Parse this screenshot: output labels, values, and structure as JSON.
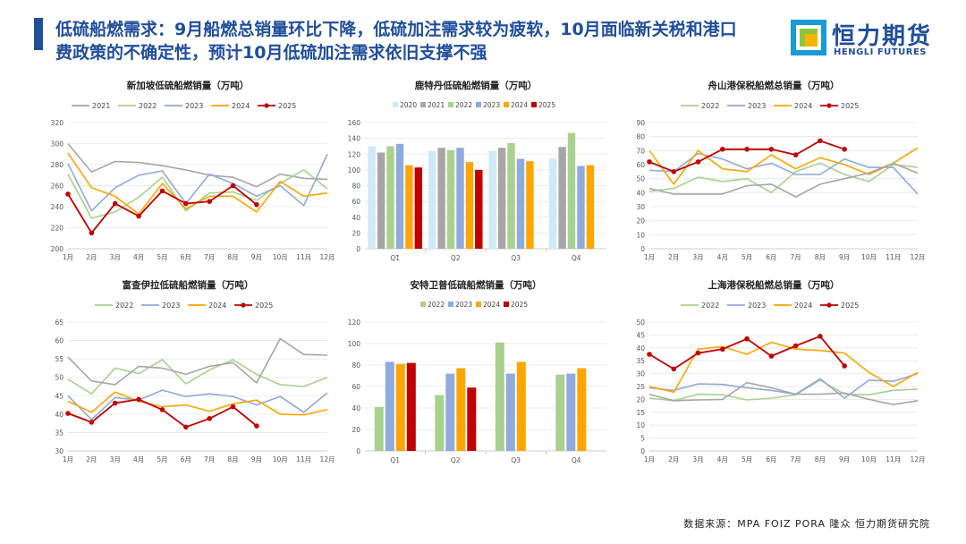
{
  "header": {
    "title_line1": "低硫船燃需求：9月船燃总销量环比下降，低硫加注需求较为疲软，10月面临新关税和港口",
    "title_line2": "费政策的不确定性，预计10月低硫加注需求依旧支撑不强",
    "accent_color": "#1f4e9c"
  },
  "logo": {
    "name": "恒力期货",
    "name_en": "HENGLI FUTURES",
    "icon": "hengli-logo-icon"
  },
  "footer": {
    "source": "数据来源：MPA FOIZ PORA 隆众 恒力期货研究院"
  },
  "chart_data": [
    {
      "type": "line",
      "title": "新加坡低硫船燃销量（万吨）",
      "categories": [
        "1月",
        "2月",
        "3月",
        "4月",
        "5月",
        "6月",
        "7月",
        "8月",
        "9月",
        "10月",
        "11月",
        "12月"
      ],
      "ylim": [
        200,
        320
      ],
      "ystep": 20,
      "series": [
        {
          "name": "2021",
          "color": "#a6a6a6",
          "marker": false,
          "values": [
            300,
            273,
            283,
            282,
            279,
            275,
            270,
            268,
            259,
            271,
            267,
            266
          ]
        },
        {
          "name": "2022",
          "color": "#a9d18e",
          "marker": false,
          "values": [
            271,
            229,
            235,
            249,
            268,
            236,
            253,
            254,
            246,
            262,
            275,
            257
          ]
        },
        {
          "name": "2023",
          "color": "#8faadc",
          "marker": false,
          "values": [
            281,
            236,
            258,
            270,
            274,
            243,
            271,
            262,
            250,
            260,
            241,
            290
          ]
        },
        {
          "name": "2024",
          "color": "#ffa500",
          "marker": false,
          "values": [
            291,
            258,
            250,
            233,
            262,
            238,
            250,
            250,
            235,
            264,
            250,
            253
          ]
        },
        {
          "name": "2025",
          "color": "#c00000",
          "marker": true,
          "values": [
            252,
            215,
            243,
            231,
            255,
            243,
            245,
            260,
            242,
            null,
            null,
            null
          ]
        }
      ]
    },
    {
      "type": "bar",
      "title": "鹿特丹低硫船燃销量（万吨）",
      "categories": [
        "Q1",
        "Q2",
        "Q3",
        "Q4"
      ],
      "ylim": [
        0,
        160
      ],
      "ystep": 20,
      "series": [
        {
          "name": "2020",
          "color": "#cfeaf7",
          "values": [
            130,
            124,
            124,
            115
          ]
        },
        {
          "name": "2021",
          "color": "#a6a6a6",
          "values": [
            122,
            128,
            128,
            129
          ]
        },
        {
          "name": "2022",
          "color": "#a9d18e",
          "values": [
            130,
            125,
            134,
            147
          ]
        },
        {
          "name": "2023",
          "color": "#8faadc",
          "values": [
            133,
            128,
            114,
            105
          ]
        },
        {
          "name": "2024",
          "color": "#ffa500",
          "values": [
            106,
            110,
            111,
            106
          ]
        },
        {
          "name": "2025",
          "color": "#c00000",
          "values": [
            103,
            100,
            null,
            null
          ]
        }
      ]
    },
    {
      "type": "line",
      "title": "舟山港保税船燃总销量（万吨）",
      "categories": [
        "1月",
        "2月",
        "3月",
        "4月",
        "5月",
        "6月",
        "7月",
        "8月",
        "9月",
        "10月",
        "11月",
        "12月"
      ],
      "ylim": [
        0,
        90
      ],
      "ystep": 10,
      "series": [
        {
          "name": "2022",
          "color": "#a9d18e",
          "marker": false,
          "values": [
            41,
            43,
            51,
            48,
            50,
            40,
            55,
            61,
            53,
            48,
            60,
            58
          ]
        },
        {
          "name": "2023",
          "color": "#8faadc",
          "marker": false,
          "values": [
            56,
            55,
            68,
            64,
            57,
            61,
            53,
            53,
            64,
            58,
            58,
            39
          ]
        },
        {
          "name": "2024",
          "color": "#ffa500",
          "marker": false,
          "values": [
            70,
            46,
            70,
            57,
            55,
            67,
            57,
            65,
            60,
            53,
            61,
            72
          ]
        },
        {
          "name": "2025",
          "color": "#c00000",
          "marker": true,
          "values": [
            62,
            55,
            62,
            71,
            71,
            71,
            67,
            77,
            71,
            null,
            null,
            null
          ]
        },
        {
          "name": "2021",
          "color": "#a6a6a6",
          "marker": false,
          "legend": false,
          "values": [
            43,
            39,
            39,
            39,
            45,
            46,
            37,
            46,
            50,
            54,
            61,
            54
          ]
        }
      ]
    },
    {
      "type": "line",
      "title": "富查伊拉低硫船燃销量（万吨）",
      "categories": [
        "1月",
        "2月",
        "3月",
        "4月",
        "5月",
        "6月",
        "7月",
        "8月",
        "9月",
        "10月",
        "11月",
        "12月"
      ],
      "ylim": [
        30,
        65
      ],
      "ystep": 5,
      "series": [
        {
          "name": "2022",
          "color": "#a9d18e",
          "marker": false,
          "values": [
            49.5,
            45.5,
            52.5,
            51.0,
            54.8,
            48.2,
            52.0,
            54.8,
            50.8,
            48.0,
            47.5,
            50.0
          ]
        },
        {
          "name": "2023",
          "color": "#8faadc",
          "marker": false,
          "values": [
            45.0,
            38.5,
            44.5,
            43.8,
            46.5,
            44.8,
            45.5,
            44.8,
            42.5,
            44.8,
            40.5,
            45.8
          ]
        },
        {
          "name": "2024",
          "color": "#ffa500",
          "marker": false,
          "values": [
            43.5,
            40.5,
            46.0,
            43.5,
            42.0,
            42.5,
            40.8,
            42.8,
            43.8,
            40.0,
            39.8,
            41.2
          ]
        },
        {
          "name": "2025",
          "color": "#c00000",
          "marker": true,
          "values": [
            40.2,
            37.8,
            43.0,
            44.0,
            41.2,
            36.5,
            38.8,
            42.0,
            36.8,
            null,
            null,
            null
          ]
        },
        {
          "name": "2021",
          "color": "#a6a6a6",
          "marker": false,
          "legend": false,
          "values": [
            55.5,
            49.0,
            48.0,
            53.0,
            52.5,
            50.8,
            53.0,
            54.0,
            48.5,
            60.5,
            56.2,
            56.0
          ]
        }
      ]
    },
    {
      "type": "bar",
      "title": "安特卫普低硫船燃销量（万吨）",
      "categories": [
        "Q1",
        "Q2",
        "Q3",
        "Q4"
      ],
      "ylim": [
        0,
        120
      ],
      "ystep": 20,
      "series": [
        {
          "name": "2022",
          "color": "#a9d18e",
          "values": [
            41,
            52,
            101,
            71
          ]
        },
        {
          "name": "2023",
          "color": "#8faadc",
          "values": [
            83,
            72,
            72,
            72
          ]
        },
        {
          "name": "2024",
          "color": "#ffa500",
          "values": [
            81,
            77,
            83,
            77
          ]
        },
        {
          "name": "2025",
          "color": "#c00000",
          "values": [
            82,
            59,
            null,
            null
          ]
        }
      ]
    },
    {
      "type": "line",
      "title": "上海港保税船燃总销量（万吨）",
      "categories": [
        "1月",
        "2月",
        "3月",
        "4月",
        "5月",
        "6月",
        "7月",
        "8月",
        "9月",
        "10月",
        "11月",
        "12月"
      ],
      "ylim": [
        0,
        50
      ],
      "ystep": 5,
      "series": [
        {
          "name": "2022",
          "color": "#a9d18e",
          "marker": false,
          "values": [
            20.5,
            19.5,
            22.0,
            21.8,
            19.8,
            20.5,
            21.8,
            27.5,
            22.0,
            21.8,
            23.5,
            24.0
          ]
        },
        {
          "name": "2023",
          "color": "#8faadc",
          "marker": false,
          "values": [
            24.5,
            23.5,
            26.0,
            25.8,
            24.5,
            23.5,
            22.0,
            28.0,
            20.5,
            27.5,
            27.0,
            30.0
          ]
        },
        {
          "name": "2024",
          "color": "#ffa500",
          "marker": false,
          "values": [
            25.0,
            22.8,
            39.5,
            40.5,
            37.5,
            42.2,
            39.5,
            39.0,
            38.0,
            30.5,
            25.0,
            30.5
          ]
        },
        {
          "name": "2025",
          "color": "#c00000",
          "marker": true,
          "values": [
            37.5,
            31.8,
            38.0,
            39.5,
            43.5,
            36.8,
            40.8,
            44.5,
            33.0,
            null,
            null,
            null
          ]
        },
        {
          "name": "2021",
          "color": "#a6a6a6",
          "marker": false,
          "legend": false,
          "values": [
            22.0,
            19.5,
            19.8,
            20.0,
            26.5,
            24.5,
            22.0,
            22.0,
            22.5,
            20.0,
            18.0,
            19.5
          ]
        }
      ]
    }
  ]
}
